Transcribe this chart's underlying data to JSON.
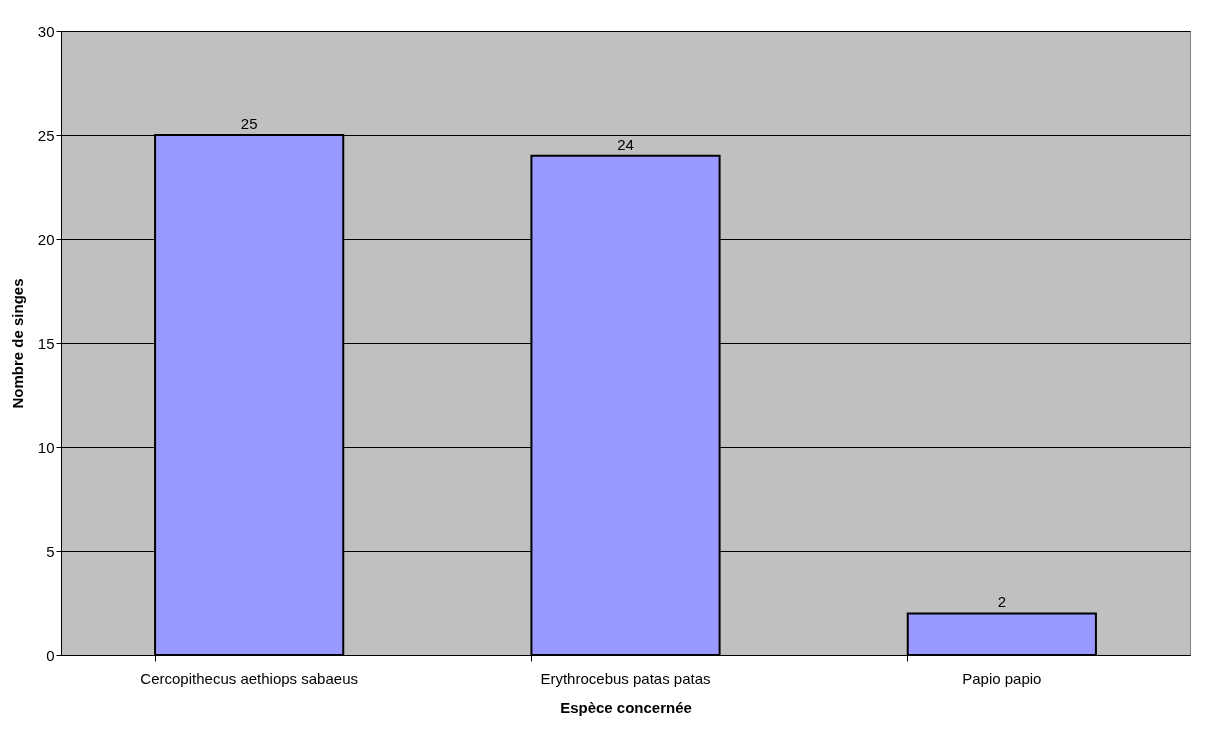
{
  "chart_data": {
    "type": "bar",
    "xlabel": "Espèce concernée",
    "ylabel": "Nombre de singes",
    "categories": [
      "Cercopithecus aethiops sabaeus",
      "Erythrocebus patas patas",
      "Papio papio"
    ],
    "values": [
      25,
      24,
      2
    ],
    "color": "#9999ff",
    "ylim": [
      0,
      30
    ],
    "yticks": [
      0,
      5,
      10,
      15,
      20,
      25,
      30
    ],
    "grid": "y",
    "data_labels": true
  }
}
